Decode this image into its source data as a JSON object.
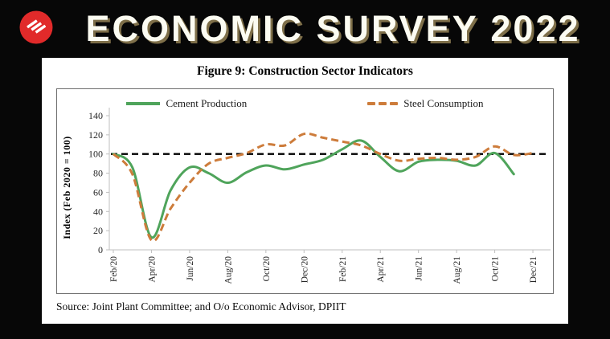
{
  "banner": {
    "title": "ECONOMIC SURVEY 2022",
    "logo": "indian-express-logo",
    "colors": {
      "logo_red": "#e12a2a",
      "title_shadow": "#85754d",
      "background": "#000000"
    }
  },
  "figure": {
    "title": "Figure 9: Construction Sector Indicators",
    "source": "Source: Joint Plant Committee; and O/o Economic Advisor, DPIIT"
  },
  "chart_data": {
    "type": "line",
    "title": "Figure 9: Construction Sector Indicators",
    "xlabel": "",
    "ylabel": "Index (Feb 2020 = 100)",
    "ylim": [
      0,
      140
    ],
    "ytick_step": 20,
    "grid": false,
    "legend_position": "top",
    "x": [
      "Feb/20",
      "Mar/20",
      "Apr/20",
      "May/20",
      "Jun/20",
      "Jul/20",
      "Aug/20",
      "Sep/20",
      "Oct/20",
      "Nov/20",
      "Dec/20",
      "Jan/21",
      "Feb/21",
      "Mar/21",
      "Apr/21",
      "May/21",
      "Jun/21",
      "Jul/21",
      "Aug/21",
      "Sep/21",
      "Oct/21",
      "Nov/21",
      "Dec/21"
    ],
    "xtick_labels_shown": [
      "Feb/20",
      "Apr/20",
      "Jun/20",
      "Aug/20",
      "Oct/20",
      "Dec/20",
      "Feb/21",
      "Apr/21",
      "Jun/21",
      "Aug/21",
      "Oct/21",
      "Dec/21"
    ],
    "series": [
      {
        "name": "Cement Production",
        "color": "#4fa45b",
        "style": "solid",
        "values": [
          100,
          86,
          13,
          62,
          86,
          80,
          70,
          81,
          88,
          84,
          89,
          94,
          105,
          114,
          97,
          82,
          92,
          94,
          93,
          88,
          101,
          79,
          null
        ]
      },
      {
        "name": "Steel Consumption",
        "color": "#cd7c3b",
        "style": "dashed",
        "values": [
          100,
          79,
          10,
          43,
          70,
          90,
          96,
          101,
          110,
          109,
          121,
          117,
          113,
          109,
          100,
          93,
          95,
          96,
          94,
          97,
          108,
          99,
          101
        ]
      }
    ],
    "reference_line": {
      "value": 100,
      "color": "#000000",
      "style": "dashed"
    },
    "axis_color": "#bfbfbf",
    "tick_label_color": "#262626"
  }
}
